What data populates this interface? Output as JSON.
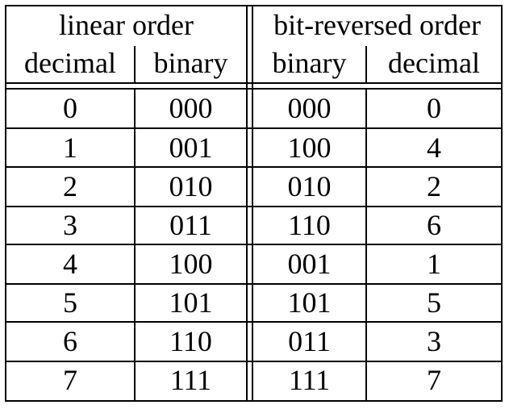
{
  "header": {
    "group_linear": "linear order",
    "group_bitrev": "bit-reversed order",
    "col_decimal_1": "decimal",
    "col_binary_1": "binary",
    "col_binary_2": "binary",
    "col_decimal_2": "decimal"
  },
  "rows": [
    [
      "0",
      "000",
      "000",
      "0"
    ],
    [
      "1",
      "001",
      "100",
      "4"
    ],
    [
      "2",
      "010",
      "010",
      "2"
    ],
    [
      "3",
      "011",
      "110",
      "6"
    ],
    [
      "4",
      "100",
      "001",
      "1"
    ],
    [
      "5",
      "101",
      "101",
      "5"
    ],
    [
      "6",
      "110",
      "011",
      "3"
    ],
    [
      "7",
      "111",
      "111",
      "7"
    ]
  ]
}
